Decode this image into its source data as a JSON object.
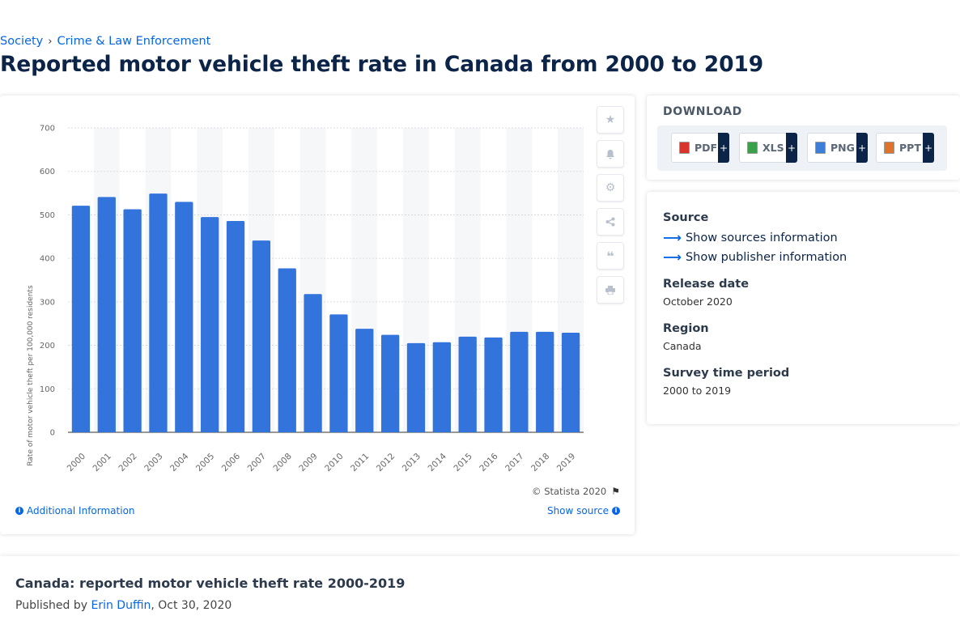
{
  "breadcrumb": {
    "level1": "Society",
    "separator": "›",
    "level2": "Crime & Law Enforcement"
  },
  "page_title": "Reported motor vehicle theft rate in Canada from 2000 to 2019",
  "chart": {
    "copyright": "© Statista 2020",
    "additional_info": "Additional Information",
    "show_source": "Show source",
    "tools": [
      "star-icon",
      "bell-icon",
      "gear-icon",
      "share-icon",
      "quote-icon",
      "print-icon"
    ]
  },
  "chart_data": {
    "type": "bar",
    "categories": [
      "2000",
      "2001",
      "2002",
      "2003",
      "2004",
      "2005",
      "2006",
      "2007",
      "2008",
      "2009",
      "2010",
      "2011",
      "2012",
      "2013",
      "2014",
      "2015",
      "2016",
      "2017",
      "2018",
      "2019"
    ],
    "values": [
      521,
      541,
      513,
      549,
      530,
      495,
      486,
      441,
      377,
      318,
      271,
      238,
      224,
      205,
      207,
      220,
      218,
      231,
      231,
      229
    ],
    "ylabel": "Rate of motor vehicle theft per 100,000 residents",
    "xlabel": "",
    "ylim": [
      0,
      700
    ],
    "yticks": [
      0,
      100,
      200,
      300,
      400,
      500,
      600,
      700
    ],
    "bar_color": "#3273dc",
    "grid": true
  },
  "download": {
    "title": "DOWNLOAD",
    "buttons": [
      {
        "label": "PDF",
        "color": "#d9342b"
      },
      {
        "label": "XLS",
        "color": "#3aa04a"
      },
      {
        "label": "PNG",
        "color": "#3d7fd6"
      },
      {
        "label": "PPT",
        "color": "#e0732a"
      }
    ],
    "plus": "+"
  },
  "info": {
    "source_label": "Source",
    "show_sources": "Show sources information",
    "show_publisher": "Show publisher information",
    "release_label": "Release date",
    "release_value": "October 2020",
    "region_label": "Region",
    "region_value": "Canada",
    "period_label": "Survey time period",
    "period_value": "2000 to 2019"
  },
  "article": {
    "title": "Canada: reported motor vehicle theft rate 2000-2019",
    "published_by": "Published by",
    "author": "Erin Duffin",
    "date": ", Oct 30, 2020"
  }
}
